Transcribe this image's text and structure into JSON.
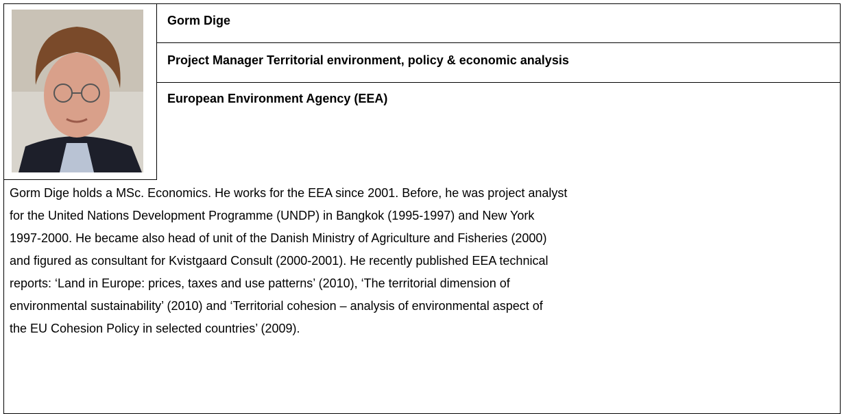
{
  "profile": {
    "name": "Gorm Dige",
    "position": "Project Manager Territorial environment, policy & economic analysis",
    "organization": "European Environment Agency (EEA)",
    "bio_lines": [
      "Gorm Dige holds a MSc. Economics. He works for the EEA since 2001. Before, he was project analyst",
      "for the United Nations Development Programme (UNDP) in Bangkok (1995-1997) and New York",
      "1997-2000. He became also head of unit of the Danish Ministry of Agriculture and Fisheries (2000)",
      "and figured as consultant for Kvistgaard Consult (2000-2001). He recently published EEA technical",
      "reports: ‘Land in Europe: prices, taxes and use patterns’ (2010), ‘The territorial dimension of",
      "environmental sustainability’ (2010) and ‘Territorial cohesion – analysis of environmental aspect of",
      "the EU Cohesion Policy in selected countries’ (2009)."
    ]
  }
}
